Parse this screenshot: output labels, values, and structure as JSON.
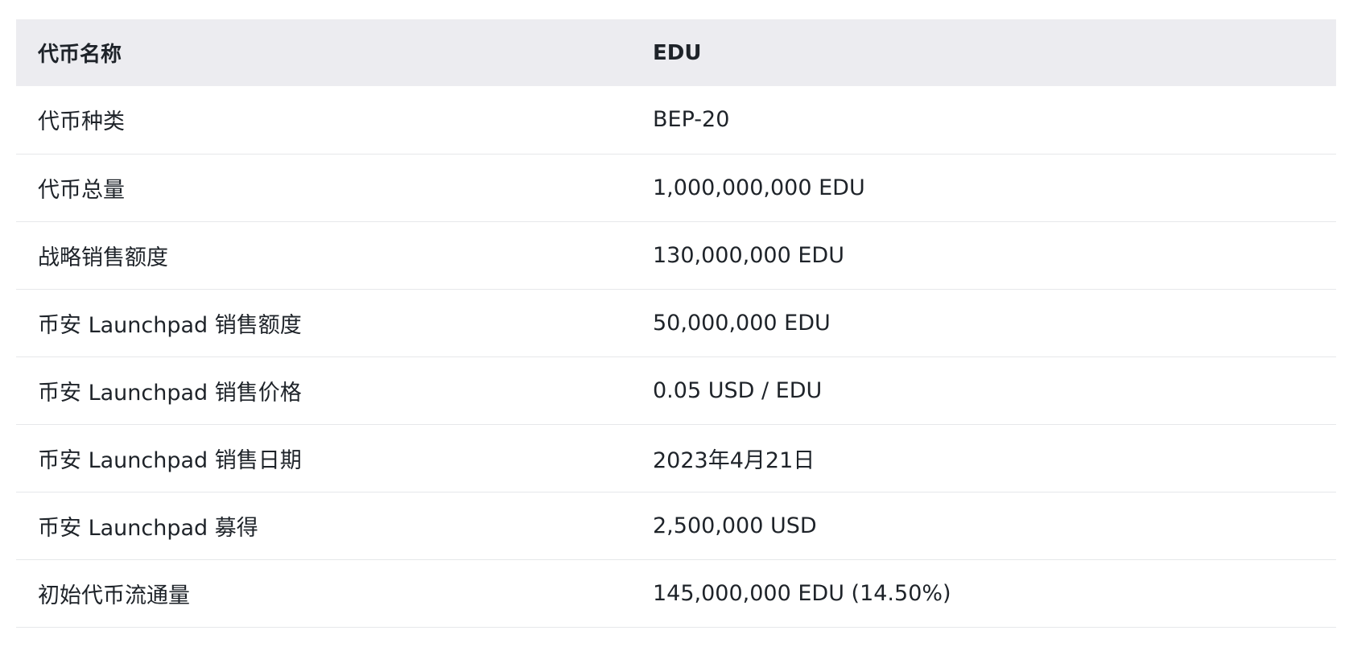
{
  "table": {
    "header": {
      "label": "代币名称",
      "value": "EDU"
    },
    "rows": [
      {
        "label": "代币种类",
        "value": "BEP-20"
      },
      {
        "label": "代币总量",
        "value": "1,000,000,000 EDU"
      },
      {
        "label": "战略销售额度",
        "value": "130,000,000 EDU"
      },
      {
        "label": "币安 Launchpad 销售额度",
        "value": "50,000,000 EDU"
      },
      {
        "label": "币安 Launchpad 销售价格",
        "value": "0.05 USD / EDU"
      },
      {
        "label": "币安 Launchpad 销售日期",
        "value": "2023年4月21日"
      },
      {
        "label": "币安 Launchpad 募得",
        "value": "2,500,000 USD"
      },
      {
        "label": "初始代币流通量",
        "value": "145,000,000 EDU (14.50%)"
      }
    ]
  }
}
